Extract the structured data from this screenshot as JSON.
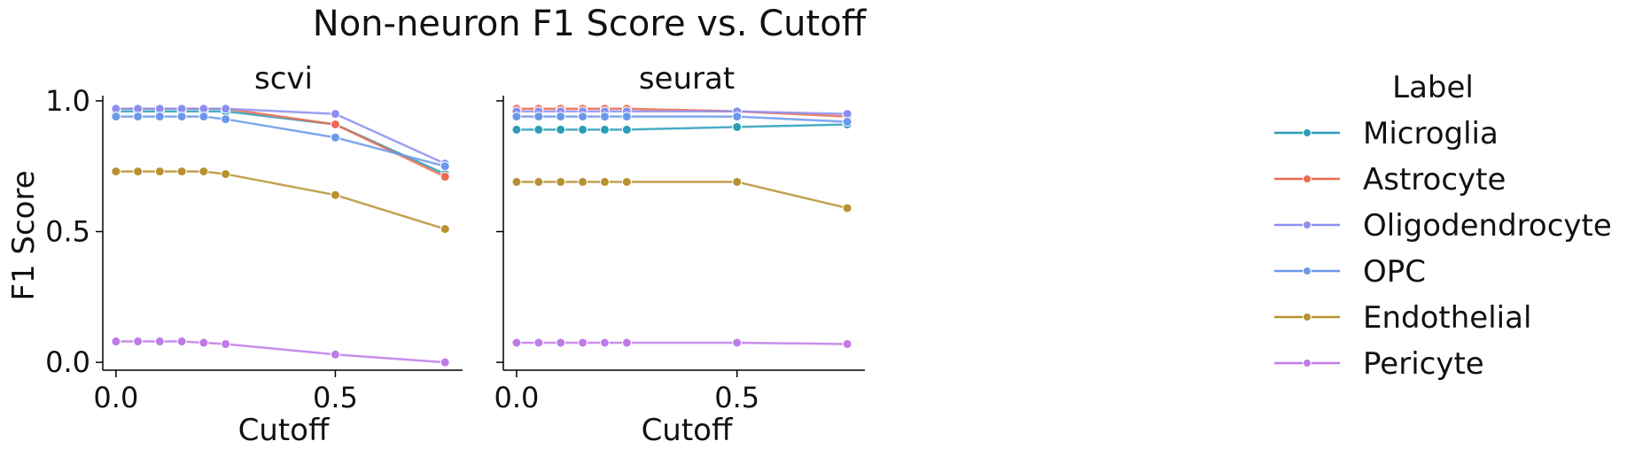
{
  "chart_data": {
    "type": "line",
    "title": "Non-neuron F1 Score vs. Cutoff",
    "ylabel": "F1 Score",
    "xlabel": "Cutoff",
    "xlim": [
      -0.03,
      0.79
    ],
    "ylim": [
      -0.03,
      1.02
    ],
    "x_ticks": [
      0.0,
      0.5
    ],
    "x_tick_labels": [
      "0.0",
      "0.5"
    ],
    "y_ticks": [
      0.0,
      0.5,
      1.0
    ],
    "y_tick_labels": [
      "0.0",
      "0.5",
      "1.0"
    ],
    "grid": false,
    "legend": {
      "title": "Label",
      "placement": "right",
      "entries": [
        "Microglia",
        "Astrocyte",
        "Oligodendrocyte",
        "OPC",
        "Endothelial",
        "Pericyte"
      ]
    },
    "colors": {
      "Microglia": "#2a9db8",
      "Astrocyte": "#ee6a50",
      "Oligodendrocyte": "#8c8ff0",
      "OPC": "#6b98ea",
      "Endothelial": "#b89230",
      "Pericyte": "#c07ae8"
    },
    "x": [
      0.0,
      0.05,
      0.1,
      0.15,
      0.2,
      0.25,
      0.5,
      0.75
    ],
    "panels": [
      {
        "title": "scvi",
        "series": [
          {
            "name": "Microglia",
            "values": [
              0.96,
              0.96,
              0.96,
              0.96,
              0.96,
              0.96,
              0.91,
              0.72
            ]
          },
          {
            "name": "Astrocyte",
            "values": [
              0.97,
              0.97,
              0.97,
              0.97,
              0.97,
              0.97,
              0.91,
              0.71
            ]
          },
          {
            "name": "Oligodendrocyte",
            "values": [
              0.97,
              0.97,
              0.97,
              0.97,
              0.97,
              0.97,
              0.95,
              0.76
            ]
          },
          {
            "name": "OPC",
            "values": [
              0.94,
              0.94,
              0.94,
              0.94,
              0.94,
              0.93,
              0.86,
              0.75
            ]
          },
          {
            "name": "Endothelial",
            "values": [
              0.73,
              0.73,
              0.73,
              0.73,
              0.73,
              0.72,
              0.64,
              0.51
            ]
          },
          {
            "name": "Pericyte",
            "values": [
              0.08,
              0.08,
              0.08,
              0.08,
              0.075,
              0.07,
              0.03,
              0.0
            ]
          }
        ]
      },
      {
        "title": "seurat",
        "series": [
          {
            "name": "Microglia",
            "values": [
              0.89,
              0.89,
              0.89,
              0.89,
              0.89,
              0.89,
              0.9,
              0.91
            ]
          },
          {
            "name": "Astrocyte",
            "values": [
              0.97,
              0.97,
              0.97,
              0.97,
              0.97,
              0.97,
              0.96,
              0.94
            ]
          },
          {
            "name": "Oligodendrocyte",
            "values": [
              0.96,
              0.96,
              0.96,
              0.96,
              0.96,
              0.96,
              0.96,
              0.95
            ]
          },
          {
            "name": "OPC",
            "values": [
              0.94,
              0.94,
              0.94,
              0.94,
              0.94,
              0.94,
              0.94,
              0.92
            ]
          },
          {
            "name": "Endothelial",
            "values": [
              0.69,
              0.69,
              0.69,
              0.69,
              0.69,
              0.69,
              0.69,
              0.59
            ]
          },
          {
            "name": "Pericyte",
            "values": [
              0.075,
              0.075,
              0.075,
              0.075,
              0.075,
              0.075,
              0.075,
              0.07
            ]
          }
        ]
      }
    ]
  }
}
